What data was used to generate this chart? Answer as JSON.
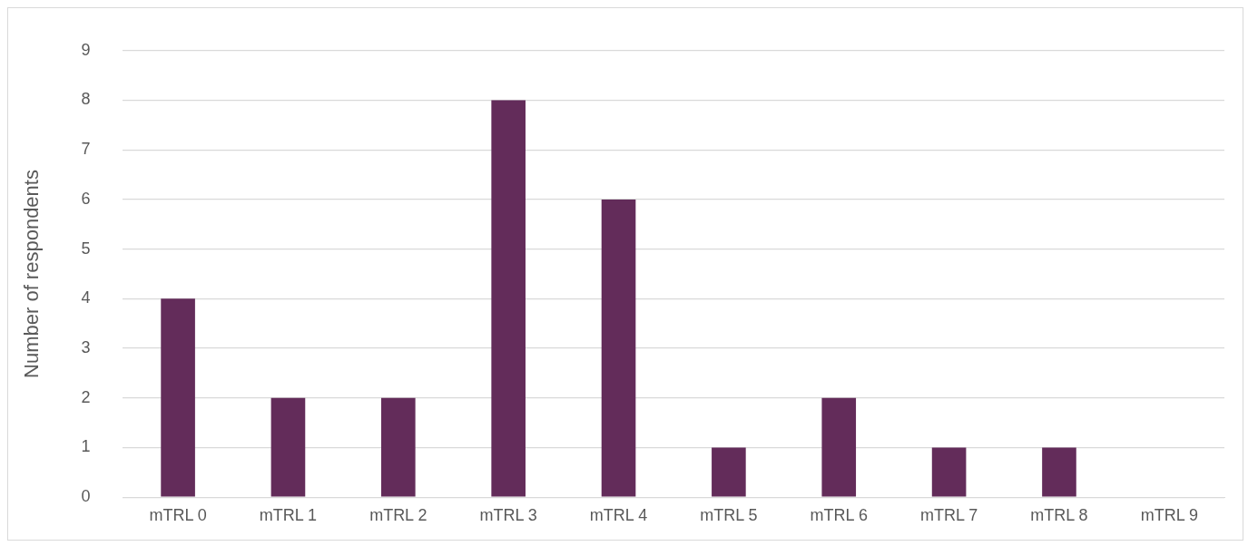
{
  "chart_data": {
    "type": "bar",
    "ylabel": "Number of respondents",
    "categories": [
      "mTRL 0",
      "mTRL 1",
      "mTRL 2",
      "mTRL 3",
      "mTRL 4",
      "mTRL 5",
      "mTRL 6",
      "mTRL 7",
      "mTRL 8",
      "mTRL 9"
    ],
    "values": [
      4,
      2,
      2,
      8,
      6,
      1,
      2,
      1,
      1,
      0
    ],
    "color": "#632c5a",
    "ylim": [
      0,
      9
    ],
    "yticks": [
      0,
      1,
      2,
      3,
      4,
      5,
      6,
      7,
      8,
      9
    ],
    "grid": "y",
    "legend": false
  }
}
